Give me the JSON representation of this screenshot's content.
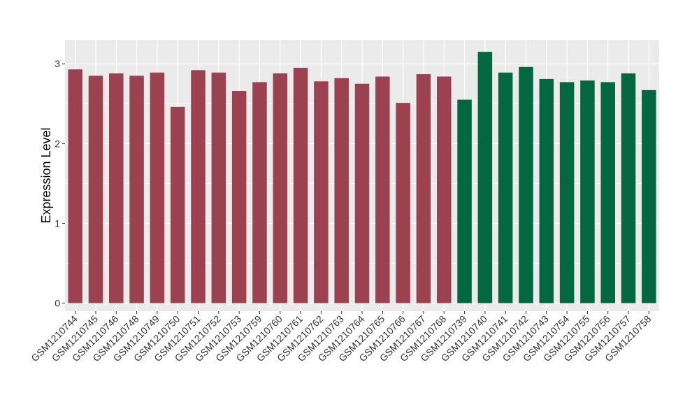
{
  "chart_data": {
    "type": "bar",
    "ylabel": "Expression Level",
    "xlabel": "",
    "title": "",
    "ylim": [
      -0.1,
      3.3
    ],
    "yticks": [
      0,
      1,
      2,
      3
    ],
    "grid": true,
    "legend": "none",
    "categories": [
      "GSM1210744",
      "GSM1210745",
      "GSM1210746",
      "GSM1210748",
      "GSM1210749",
      "GSM1210750",
      "GSM1210751",
      "GSM1210752",
      "GSM1210753",
      "GSM1210759",
      "GSM1210760",
      "GSM1210761",
      "GSM1210762",
      "GSM1210763",
      "GSM1210764",
      "GSM1210765",
      "GSM1210766",
      "GSM1210767",
      "GSM1210768",
      "GSM1210739",
      "GSM1210740",
      "GSM1210741",
      "GSM1210742",
      "GSM1210743",
      "GSM1210754",
      "GSM1210755",
      "GSM1210756",
      "GSM1210757",
      "GSM1210758"
    ],
    "values": [
      2.93,
      2.85,
      2.88,
      2.85,
      2.89,
      2.46,
      2.92,
      2.89,
      2.66,
      2.77,
      2.88,
      2.95,
      2.78,
      2.82,
      2.75,
      2.84,
      2.51,
      2.87,
      2.84,
      2.55,
      3.15,
      2.89,
      2.96,
      2.81,
      2.77,
      2.79,
      2.77,
      2.88,
      2.67
    ],
    "colors": [
      "#9b4150",
      "#9b4150",
      "#9b4150",
      "#9b4150",
      "#9b4150",
      "#9b4150",
      "#9b4150",
      "#9b4150",
      "#9b4150",
      "#9b4150",
      "#9b4150",
      "#9b4150",
      "#9b4150",
      "#9b4150",
      "#9b4150",
      "#9b4150",
      "#9b4150",
      "#9b4150",
      "#9b4150",
      "#036741",
      "#036741",
      "#036741",
      "#036741",
      "#036741",
      "#036741",
      "#036741",
      "#036741",
      "#036741",
      "#036741"
    ],
    "panel_background": "#ebebeb",
    "grid_color": "#ffffff"
  }
}
